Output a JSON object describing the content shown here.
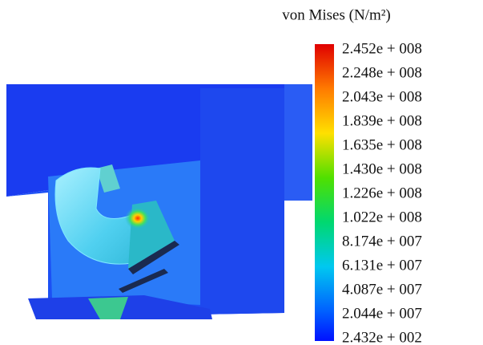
{
  "legend": {
    "title": "von Mises (N/m²)",
    "ticks": [
      "2.452e + 008",
      "2.248e + 008",
      "2.043e + 008",
      "1.839e + 008",
      "1.635e + 008",
      "1.430e + 008",
      "1.226e + 008",
      "1.022e + 008",
      "8.174e + 007",
      "6.131e + 007",
      "4.087e + 007",
      "2.044e + 007",
      "2.432e + 002"
    ]
  }
}
